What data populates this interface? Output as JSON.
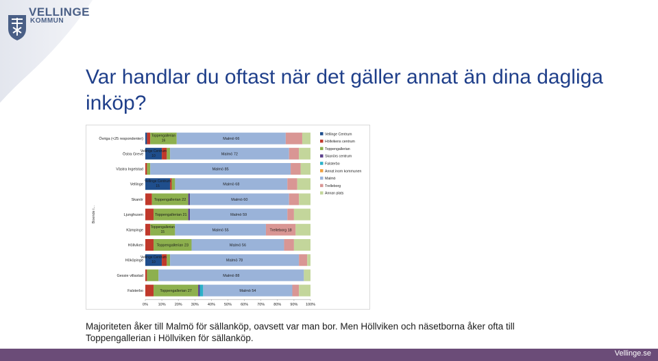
{
  "logo": {
    "line1": "VELLINGE",
    "line2": "KOMMUN"
  },
  "slide": {
    "title": "Var handlar du oftast när det gäller annat än dina dagliga inköp?",
    "caption": "Majoriteten åker till Malmö för sällanköp, oavsett var man bor. Men Höllviken och näsetborna åker ofta till Toppengallerian i Höllviken för sällanköp."
  },
  "footer": {
    "site": "Vellinge.se"
  },
  "colors": {
    "brand": "#4a5f86",
    "title": "#1f3f8a",
    "footer": "#6b4c78"
  },
  "chart_data": {
    "type": "bar",
    "orientation": "horizontal",
    "stacked": true,
    "percent": true,
    "ylabel": "Boende i...",
    "xlim": [
      0,
      100
    ],
    "x_ticks": [
      "0%",
      "10%",
      "20%",
      "30%",
      "40%",
      "50%",
      "60%",
      "70%",
      "80%",
      "90%",
      "100%"
    ],
    "categories": [
      "Övriga (<25 respondenter)",
      "Östra Greve",
      "Västra Ingelstad",
      "Vellinge",
      "Skanör",
      "Ljunghusen",
      "Kämpinge",
      "Höllviken",
      "Hököpinge",
      "Gessie villastad",
      "Falsterbo"
    ],
    "series": [
      {
        "name": "Vellinge Centrum",
        "color": "#1f4e8c",
        "values": [
          1,
          10,
          0,
          15,
          0,
          0,
          0,
          0,
          10,
          0,
          0
        ]
      },
      {
        "name": "Höllvikens centrum",
        "color": "#c0392b",
        "values": [
          2,
          3,
          1,
          1,
          4,
          5,
          3,
          5,
          3,
          1,
          5
        ]
      },
      {
        "name": "Toppengallerian",
        "color": "#8db04e",
        "values": [
          16,
          2,
          2,
          2,
          22,
          21,
          15,
          23,
          2,
          7,
          27
        ]
      },
      {
        "name": "Skanörs centrum",
        "color": "#5b3f8c",
        "values": [
          0,
          0,
          0,
          0,
          1,
          1,
          0,
          0,
          0,
          0,
          1
        ]
      },
      {
        "name": "Falsterbo",
        "color": "#2bb0c8",
        "values": [
          0,
          0,
          0,
          0,
          0,
          0,
          0,
          0,
          0,
          0,
          2
        ]
      },
      {
        "name": "Annat inom kommunen",
        "color": "#f0a040",
        "values": [
          0,
          0,
          0,
          0,
          0,
          0,
          0,
          0,
          0,
          0,
          0
        ]
      },
      {
        "name": "Malmö",
        "color": "#9ab3d9",
        "values": [
          66,
          72,
          85,
          68,
          60,
          59,
          55,
          56,
          78,
          88,
          54
        ]
      },
      {
        "name": "Trelleborg",
        "color": "#d99694",
        "values": [
          10,
          6,
          6,
          6,
          6,
          4,
          18,
          6,
          5,
          0,
          4
        ]
      },
      {
        "name": "Annan plats",
        "color": "#c3d69b",
        "values": [
          5,
          7,
          6,
          8,
          7,
          10,
          9,
          10,
          2,
          4,
          7
        ]
      }
    ],
    "data_labels": [
      [
        "Toppengallerian 16",
        "Malmö 66"
      ],
      [
        "Vellinge Centrum 10",
        "Malmö 72"
      ],
      [
        "Malmö 85"
      ],
      [
        "Vellinge Centrum 15",
        "Malmö 68"
      ],
      [
        "Toppengallerian 22",
        "Malmö 60"
      ],
      [
        "Toppengallerian 21",
        "Malmö 59"
      ],
      [
        "Toppengallerian 15",
        "Malmö 55",
        "Trelleborg 18"
      ],
      [
        "Toppengallerian 23",
        "Malmö 56"
      ],
      [
        "Vellinge Centrum 10",
        "Malmö 78"
      ],
      [
        "Malmö 88"
      ],
      [
        "Toppengallerian 27",
        "Malmö 54"
      ]
    ]
  }
}
